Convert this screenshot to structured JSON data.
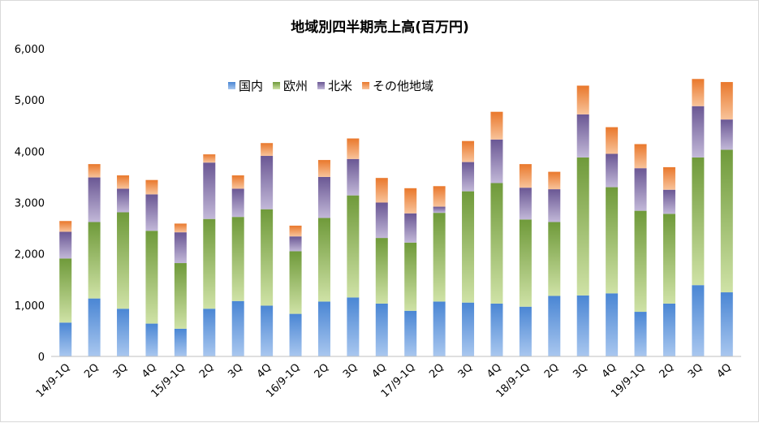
{
  "chart_data": {
    "type": "bar",
    "stacked": true,
    "title": "地域別四半期売上高(百万円)",
    "xlabel": "",
    "ylabel": "",
    "ylim": [
      0,
      6000
    ],
    "yticks": [
      "0",
      "1,000",
      "2,000",
      "3,000",
      "4,000",
      "5,000",
      "6,000"
    ],
    "grid": false,
    "legend_position": "top-center",
    "categories": [
      "14/9-1Q",
      "2Q",
      "3Q",
      "4Q",
      "15/9-1Q",
      "2Q",
      "3Q",
      "4Q",
      "16/9-1Q",
      "2Q",
      "3Q",
      "4Q",
      "17/9-1Q",
      "2Q",
      "3Q",
      "4Q",
      "18/9-1Q",
      "2Q",
      "3Q",
      "4Q",
      "19/9-1Q",
      "2Q",
      "3Q",
      "4Q"
    ],
    "series": [
      {
        "name": "国内",
        "color": "#4a86d4",
        "color_light": "#a9c7ef",
        "values": [
          660,
          1130,
          930,
          640,
          540,
          930,
          1080,
          990,
          830,
          1070,
          1150,
          1030,
          890,
          1070,
          1050,
          1030,
          970,
          1180,
          1190,
          1230,
          870,
          1030,
          1390,
          1250
        ]
      },
      {
        "name": "欧州",
        "color": "#6f9a3a",
        "color_light": "#cfe2a6",
        "values": [
          1250,
          1490,
          1880,
          1810,
          1280,
          1750,
          1640,
          1880,
          1220,
          1630,
          1990,
          1280,
          1330,
          1730,
          2170,
          2350,
          1700,
          1440,
          2690,
          2070,
          1970,
          1750,
          2490,
          2780
        ]
      },
      {
        "name": "北米",
        "color": "#6a5794",
        "color_light": "#c2b8d8",
        "values": [
          520,
          870,
          460,
          710,
          600,
          1100,
          550,
          1040,
          290,
          800,
          710,
          690,
          570,
          120,
          570,
          850,
          620,
          640,
          840,
          650,
          830,
          470,
          1000,
          590
        ]
      },
      {
        "name": "その他地域",
        "color": "#e9782c",
        "color_light": "#f8c39a",
        "values": [
          210,
          260,
          260,
          280,
          170,
          160,
          260,
          250,
          210,
          330,
          400,
          480,
          490,
          400,
          410,
          540,
          460,
          340,
          560,
          520,
          470,
          440,
          530,
          730
        ]
      }
    ]
  }
}
